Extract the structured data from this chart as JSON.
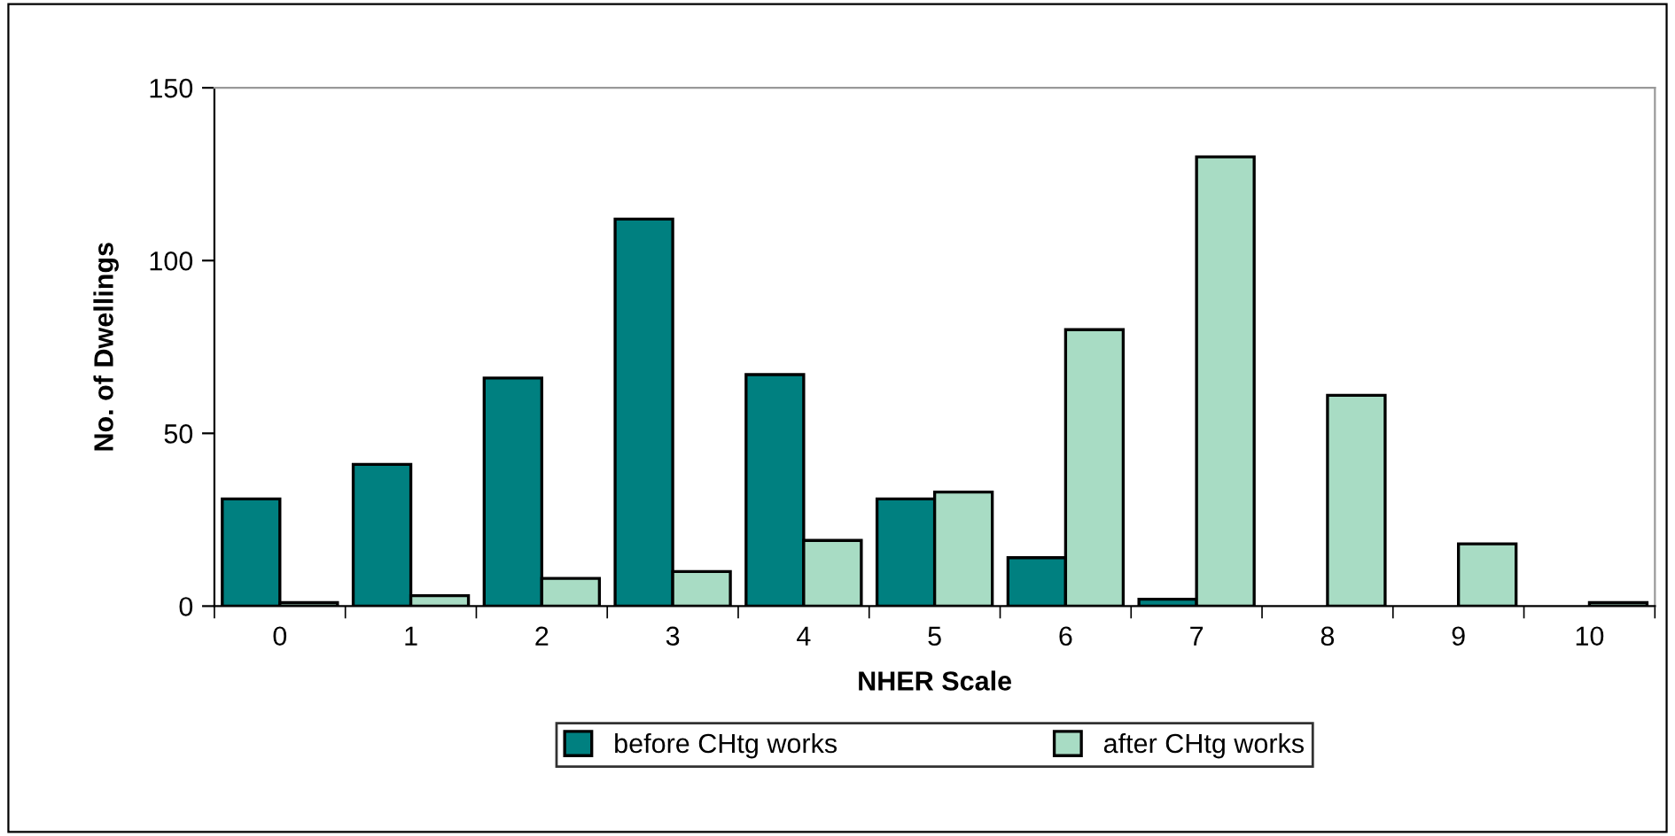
{
  "chart_data": {
    "type": "bar",
    "xlabel": "NHER Scale",
    "ylabel": "No. of Dwellings",
    "categories": [
      "0",
      "1",
      "2",
      "3",
      "4",
      "5",
      "6",
      "7",
      "8",
      "9",
      "10"
    ],
    "series": [
      {
        "name": "before CHtg works",
        "color": "#008080",
        "values": [
          31,
          41,
          66,
          112,
          67,
          31,
          14,
          2,
          0,
          0,
          0
        ]
      },
      {
        "name": "after CHtg works",
        "color": "#a8dcc4",
        "values": [
          1,
          3,
          8,
          10,
          19,
          33,
          80,
          130,
          61,
          18,
          1
        ]
      }
    ],
    "ylim": [
      0,
      150
    ],
    "yticks": [
      0,
      50,
      100,
      150
    ],
    "grid": false,
    "legend": "bottom"
  }
}
